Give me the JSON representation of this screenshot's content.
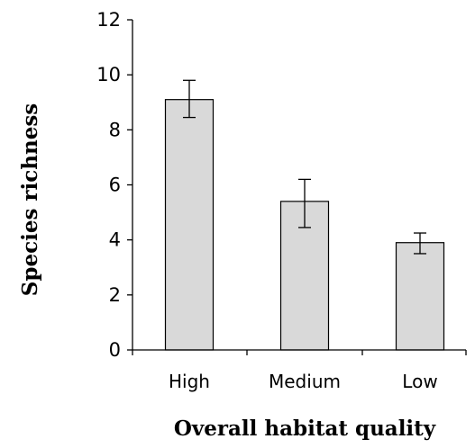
{
  "chart_data": {
    "type": "bar",
    "categories": [
      "High",
      "Medium",
      "Low"
    ],
    "values": [
      9.1,
      5.4,
      3.9
    ],
    "error_upper": [
      9.8,
      6.2,
      4.25
    ],
    "error_lower": [
      8.45,
      4.45,
      3.5
    ],
    "xlabel": "Overall habitat quality",
    "ylabel": "Species richness",
    "ylim": [
      0,
      12
    ],
    "yticks": [
      0,
      2,
      4,
      6,
      8,
      10,
      12
    ],
    "grid": false,
    "legend": "none",
    "bar_color": "#d9d9d9",
    "bar_edge_color": "#000000"
  }
}
